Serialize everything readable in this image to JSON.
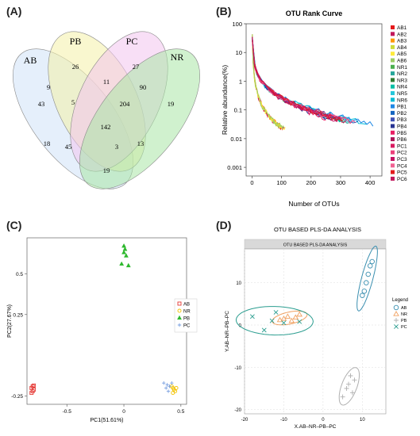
{
  "panels": {
    "a": "(A)",
    "b": "(B)",
    "c": "(C)",
    "d": "(D)"
  },
  "colors": {
    "AB": "#cfe2f8",
    "PB": "#f4f1a8",
    "PC": "#f3c4ef",
    "NR": "#a9e6a6",
    "rank_palette": [
      "#e41a1c",
      "#c2185b",
      "#ff9800",
      "#cddc39",
      "#ffeb3b",
      "#9ccc65",
      "#4caf50",
      "#26a69a",
      "#2e7d32",
      "#00bfa5",
      "#26c6da",
      "#00bcd4",
      "#1e88e5",
      "#1565c0",
      "#3f51b5",
      "#283593",
      "#e91e63",
      "#ad1457",
      "#d81b60",
      "#ec407a",
      "#c51162",
      "#f06292"
    ],
    "pca": {
      "AB": "#e53935",
      "NR": "#f2c200",
      "PB": "#2eb82e",
      "PC": "#7aa0e0"
    },
    "plsda": {
      "AB": "#3a8fb0",
      "NR": "#f0a060",
      "PB": "#b0b0b0",
      "PC": "#2a9d8f"
    }
  },
  "chart_data": [
    {
      "type": "venn",
      "title": "",
      "sets": [
        "AB",
        "PB",
        "PC",
        "NR"
      ],
      "regions": [
        {
          "sets": [
            "AB"
          ],
          "value": 43
        },
        {
          "sets": [
            "PB"
          ],
          "value": 26
        },
        {
          "sets": [
            "PC"
          ],
          "value": 27
        },
        {
          "sets": [
            "NR"
          ],
          "value": 19
        },
        {
          "sets": [
            "AB",
            "PB"
          ],
          "value": 9
        },
        {
          "sets": [
            "PB",
            "PC"
          ],
          "value": 11
        },
        {
          "sets": [
            "PC",
            "NR"
          ],
          "value": 90
        },
        {
          "sets": [
            "AB",
            "PB",
            "PC"
          ],
          "value": 5
        },
        {
          "sets": [
            "PB",
            "PC",
            "NR"
          ],
          "value": 204
        },
        {
          "sets": [
            "AB",
            "PB",
            "PC",
            "NR"
          ],
          "value": 142
        },
        {
          "sets": [
            "AB",
            "PC"
          ],
          "value": 18
        },
        {
          "sets": [
            "PB",
            "NR"
          ],
          "value": 13
        },
        {
          "sets": [
            "AB",
            "PC",
            "NR"
          ],
          "value": 45
        },
        {
          "sets": [
            "AB",
            "PB",
            "NR"
          ],
          "value": 3
        },
        {
          "sets": [
            "AB",
            "NR"
          ],
          "value": 19
        }
      ]
    },
    {
      "type": "line",
      "title": "OTU Rank Curve",
      "xlabel": "Number of OTUs",
      "ylabel": "Relative abundance(%)",
      "xlim": [
        -20,
        440
      ],
      "ylim": [
        0.0005,
        100
      ],
      "yscale": "log",
      "xticks": [
        0,
        100,
        200,
        300,
        400
      ],
      "yticks": [
        100,
        10,
        1,
        0.1,
        0.01,
        0.001
      ],
      "ytick_labels": [
        "100",
        "10",
        "1",
        "0.1",
        "0.01",
        "0.001"
      ],
      "legend_position": "right",
      "series": [
        {
          "name": "AB1",
          "n_otus": 105
        },
        {
          "name": "AB2",
          "n_otus": 110
        },
        {
          "name": "AB3",
          "n_otus": 100
        },
        {
          "name": "AB4",
          "n_otus": 95
        },
        {
          "name": "AB5",
          "n_otus": 112
        },
        {
          "name": "AB6",
          "n_otus": 108
        },
        {
          "name": "NR1",
          "n_otus": 300
        },
        {
          "name": "NR2",
          "n_otus": 330
        },
        {
          "name": "NR3",
          "n_otus": 310
        },
        {
          "name": "NR4",
          "n_otus": 320
        },
        {
          "name": "NR5",
          "n_otus": 340
        },
        {
          "name": "NR6",
          "n_otus": 390
        },
        {
          "name": "PB1",
          "n_otus": 410
        },
        {
          "name": "PB2",
          "n_otus": 360
        },
        {
          "name": "PB3",
          "n_otus": 280
        },
        {
          "name": "PB4",
          "n_otus": 260
        },
        {
          "name": "PB5",
          "n_otus": 250
        },
        {
          "name": "PB6",
          "n_otus": 300
        },
        {
          "name": "PC1",
          "n_otus": 320
        },
        {
          "name": "PC2",
          "n_otus": 350
        },
        {
          "name": "PC3",
          "n_otus": 290
        },
        {
          "name": "PC4",
          "n_otus": 330
        },
        {
          "name": "PC5",
          "n_otus": 310
        },
        {
          "name": "PC6",
          "n_otus": 300
        }
      ]
    },
    {
      "type": "scatter",
      "title": "",
      "xlabel": "PC1(51.61%)",
      "ylabel": "PC2(27.67%)",
      "xlim": [
        -0.85,
        0.55
      ],
      "ylim": [
        -0.3,
        0.72
      ],
      "xticks": [
        -0.5,
        0,
        0.5
      ],
      "xtick_labels": [
        "-0.5",
        "0",
        "0.5"
      ],
      "yticks": [
        -0.25,
        0.25,
        0.5
      ],
      "ytick_labels": [
        "-0.25",
        "0.25",
        "0.5"
      ],
      "legend_position": "right",
      "series": [
        {
          "name": "AB",
          "marker": "square",
          "points": [
            [
              -0.8,
              -0.19
            ],
            [
              -0.81,
              -0.2
            ],
            [
              -0.79,
              -0.21
            ],
            [
              -0.8,
              -0.22
            ],
            [
              -0.81,
              -0.23
            ],
            [
              -0.79,
              -0.185
            ]
          ]
        },
        {
          "name": "NR",
          "marker": "circle",
          "points": [
            [
              0.42,
              -0.19
            ],
            [
              0.43,
              -0.2
            ],
            [
              0.44,
              -0.21
            ],
            [
              0.45,
              -0.22
            ],
            [
              0.43,
              -0.23
            ],
            [
              0.46,
              -0.2
            ]
          ]
        },
        {
          "name": "PB",
          "marker": "triangle",
          "points": [
            [
              0.0,
              0.67
            ],
            [
              0.01,
              0.65
            ],
            [
              0.0,
              0.63
            ],
            [
              0.02,
              0.61
            ],
            [
              -0.02,
              0.56
            ],
            [
              0.04,
              0.55
            ]
          ]
        },
        {
          "name": "PC",
          "marker": "plus",
          "points": [
            [
              0.35,
              -0.17
            ],
            [
              0.38,
              -0.18
            ],
            [
              0.4,
              -0.19
            ],
            [
              0.37,
              -0.2
            ],
            [
              0.42,
              -0.17
            ],
            [
              0.39,
              -0.22
            ]
          ]
        }
      ]
    },
    {
      "type": "scatter",
      "title": "OTU BASED PLS-DA ANALYSIS",
      "subtitle": "OTU BASED PLS-DA ANALYSIS",
      "xlabel": "X.AB–NR–PB–PC",
      "ylabel": "Y.AB–NR–PB–PC",
      "xlim": [
        -20,
        16
      ],
      "ylim": [
        -21,
        18
      ],
      "xticks": [
        -20,
        -10,
        0,
        10
      ],
      "yticks": [
        -20,
        -10,
        0,
        10
      ],
      "legend_title": "Legend",
      "legend_position": "right",
      "series": [
        {
          "name": "AB",
          "marker": "circle",
          "points": [
            [
              12,
              14
            ],
            [
              11,
              10
            ],
            [
              10.5,
              8
            ],
            [
              10,
              7
            ],
            [
              11.5,
              12
            ],
            [
              12.5,
              15
            ]
          ]
        },
        {
          "name": "NR",
          "marker": "triangle",
          "points": [
            [
              -10,
              1.5
            ],
            [
              -9,
              2
            ],
            [
              -6,
              2.5
            ],
            [
              -8,
              1
            ],
            [
              -11,
              1.2
            ],
            [
              -7,
              1.8
            ]
          ]
        },
        {
          "name": "PB",
          "marker": "plus",
          "points": [
            [
              7,
              -12
            ],
            [
              8,
              -13
            ],
            [
              6,
              -15
            ],
            [
              7.5,
              -16
            ],
            [
              5,
              -17
            ],
            [
              6.5,
              -14
            ]
          ]
        },
        {
          "name": "PC",
          "marker": "x",
          "points": [
            [
              -18,
              2
            ],
            [
              -15,
              -1.2
            ],
            [
              -12,
              3
            ],
            [
              -10,
              0.5
            ],
            [
              -6,
              0.8
            ],
            [
              -13,
              1
            ]
          ]
        }
      ]
    }
  ]
}
